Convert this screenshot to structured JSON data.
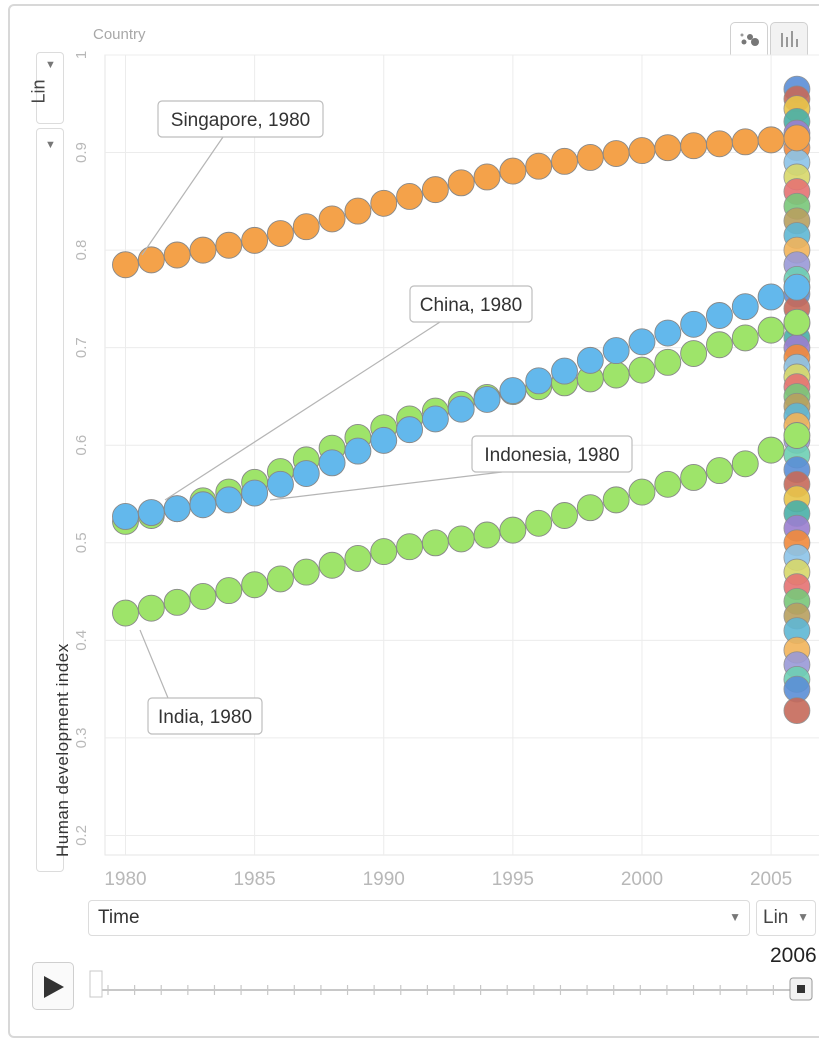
{
  "controls": {
    "color_label": "Country",
    "y_scale": "Lin",
    "y_label": "Human development index",
    "x_label": "Time",
    "x_scale": "Lin",
    "current_year": "2006",
    "view_tabs": [
      "bubble-chart-icon",
      "bar-chart-icon"
    ],
    "colors": {
      "orange": "#f4a24a",
      "blue": "#63b8ec",
      "green": "#9ee46a",
      "outline": "#8a8a8a"
    }
  },
  "chart_data": {
    "type": "scatter",
    "xlabel": "Time",
    "ylabel": "Human development index",
    "xlim": [
      1979.4,
      2006.7
    ],
    "ylim": [
      0.18,
      1.0
    ],
    "x_ticks": [
      1980,
      1985,
      1990,
      1995,
      2000,
      2005
    ],
    "y_ticks": [
      0.2,
      0.3,
      0.4,
      0.5,
      0.6,
      0.7,
      0.8,
      0.9,
      1
    ],
    "series": [
      {
        "name": "Singapore",
        "color": "#f4a24a",
        "trail_from": 1980,
        "trail_to": 2006,
        "values": [
          0.785,
          0.79,
          0.795,
          0.8,
          0.805,
          0.81,
          0.817,
          0.824,
          0.832,
          0.84,
          0.848,
          0.855,
          0.862,
          0.869,
          0.875,
          0.881,
          0.886,
          0.891,
          0.895,
          0.899,
          0.902,
          0.905,
          0.907,
          0.909,
          0.911,
          0.913,
          0.915
        ]
      },
      {
        "name": "Indonesia",
        "color": "#9ee46a",
        "trail_from": 1980,
        "trail_to": 2006,
        "values": [
          0.522,
          0.528,
          0.535,
          0.543,
          0.552,
          0.562,
          0.573,
          0.585,
          0.597,
          0.608,
          0.618,
          0.627,
          0.635,
          0.642,
          0.649,
          0.655,
          0.66,
          0.664,
          0.668,
          0.672,
          0.677,
          0.685,
          0.694,
          0.703,
          0.71,
          0.718,
          0.726
        ]
      },
      {
        "name": "China",
        "color": "#63b8ec",
        "trail_from": 1980,
        "trail_to": 2006,
        "values": [
          0.527,
          0.531,
          0.535,
          0.539,
          0.544,
          0.551,
          0.56,
          0.571,
          0.582,
          0.594,
          0.605,
          0.616,
          0.627,
          0.637,
          0.647,
          0.656,
          0.666,
          0.676,
          0.687,
          0.697,
          0.706,
          0.715,
          0.724,
          0.733,
          0.742,
          0.752,
          0.762
        ]
      },
      {
        "name": "India",
        "color": "#9ee46a",
        "trail_from": 1980,
        "trail_to": 2006,
        "values": [
          0.428,
          0.433,
          0.439,
          0.445,
          0.451,
          0.457,
          0.463,
          0.47,
          0.477,
          0.484,
          0.491,
          0.496,
          0.5,
          0.504,
          0.508,
          0.513,
          0.52,
          0.528,
          0.536,
          0.544,
          0.552,
          0.56,
          0.567,
          0.574,
          0.581,
          0.595,
          0.61
        ]
      }
    ],
    "labels": [
      {
        "text": "Singapore, 1980",
        "series": "Singapore",
        "year": 1980
      },
      {
        "text": "China, 1980",
        "series": "China",
        "year": 1980
      },
      {
        "text": "Indonesia, 1980",
        "series": "Indonesia",
        "year": 1980
      },
      {
        "text": "India, 1980",
        "series": "India",
        "year": 1980
      }
    ],
    "other_countries_2006": [
      0.965,
      0.955,
      0.945,
      0.932,
      0.92,
      0.905,
      0.89,
      0.875,
      0.86,
      0.845,
      0.83,
      0.815,
      0.8,
      0.785,
      0.77,
      0.755,
      0.74,
      0.725,
      0.71,
      0.7,
      0.69,
      0.68,
      0.67,
      0.66,
      0.65,
      0.64,
      0.63,
      0.62,
      0.605,
      0.59,
      0.575,
      0.56,
      0.545,
      0.53,
      0.515,
      0.5,
      0.485,
      0.47,
      0.455,
      0.44,
      0.425,
      0.41,
      0.39,
      0.375,
      0.36,
      0.35,
      0.328
    ],
    "other_colors": [
      "#5b8fd6",
      "#c66a5a",
      "#e8c54a",
      "#4ab0a8",
      "#9b7fd0",
      "#f08a3c",
      "#8cc4e8",
      "#d8d86a",
      "#e57373",
      "#7ac77a",
      "#b8a060",
      "#5fb7d4",
      "#f2b45a",
      "#9a9ad8",
      "#6ed0b4"
    ]
  }
}
